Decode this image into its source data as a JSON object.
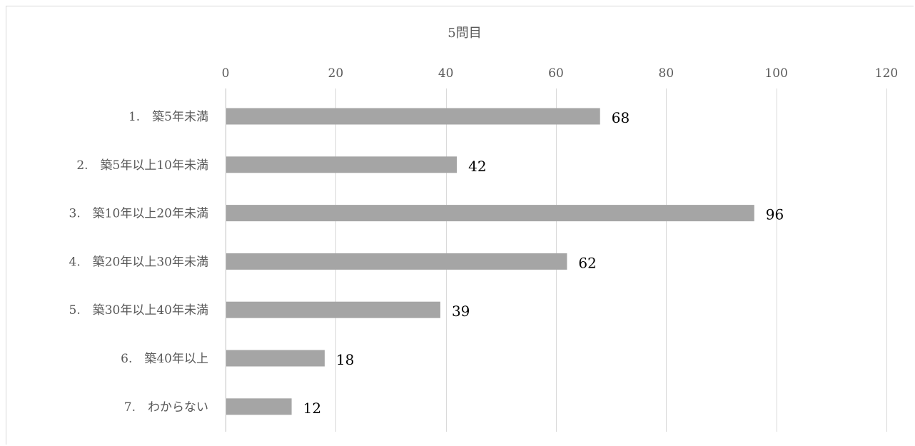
{
  "chart_data": {
    "type": "bar",
    "orientation": "horizontal",
    "title": "5問目",
    "categories": [
      "1.　築5年未満",
      "2.　築5年以上10年未満",
      "3.　築10年以上20年未満",
      "4.　築20年以上30年未満",
      "5.　築30年以上40年未満",
      "6.　築40年以上",
      "7.　わからない"
    ],
    "values": [
      68,
      42,
      96,
      62,
      39,
      18,
      12
    ],
    "data_labels": [
      "68",
      "42",
      "96",
      "62",
      "39",
      "18",
      "12"
    ],
    "xlim": [
      0,
      120
    ],
    "x_ticks": [
      0,
      20,
      40,
      60,
      80,
      100,
      120
    ],
    "x_tick_labels": [
      "0",
      "20",
      "40",
      "60",
      "80",
      "100",
      "120"
    ],
    "x_axis_position": "top",
    "grid": true,
    "bar_color": "#a5a5a5",
    "grid_color": "#d9d9d9",
    "legend": "none"
  }
}
